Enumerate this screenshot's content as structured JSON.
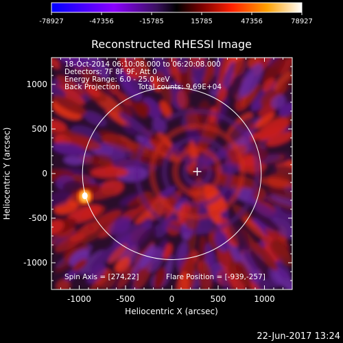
{
  "chart_data": {
    "type": "heatmap",
    "title": "Reconstructed RHESSI Image",
    "xlabel": "Heliocentric X (arcsec)",
    "ylabel": "Heliocentric Y (arcsec)",
    "xlim": [
      -1300,
      1300
    ],
    "ylim": [
      -1300,
      1300
    ],
    "x_ticks": [
      -1000,
      -500,
      0,
      500,
      1000
    ],
    "y_ticks": [
      -1000,
      -500,
      0,
      500,
      1000
    ],
    "colorbar": {
      "ticks": [
        "-78927",
        "-47356",
        "-15785",
        "15785",
        "47356",
        "78927"
      ],
      "min": -78927,
      "max": 78927
    },
    "annotations": [
      "18-Oct-2014 06:10:08.000 to 06:20:08.000",
      "Detectors: 7F 8F 9F, Att 0",
      "Energy Range: 6.0 - 25.0 keV",
      "Back Projection",
      "Total counts: 9.69E+04",
      "Spin Axis = [274,22]",
      "Flare Position = [-939,-257]"
    ],
    "solar_disk_radius_arcsec": 965,
    "marker_position": [
      274,
      22
    ],
    "bright_source_position": [
      -939,
      -257
    ],
    "grid": false
  },
  "footer": {
    "timestamp": "22-Jun-2017 13:24"
  },
  "colors": {
    "background": "#000000",
    "colormap": [
      "#0000ff",
      "#8800ff",
      "#4b1d6e",
      "#1a0a1a",
      "#600000",
      "#ff2000",
      "#ffaa00",
      "#ffffff"
    ]
  }
}
